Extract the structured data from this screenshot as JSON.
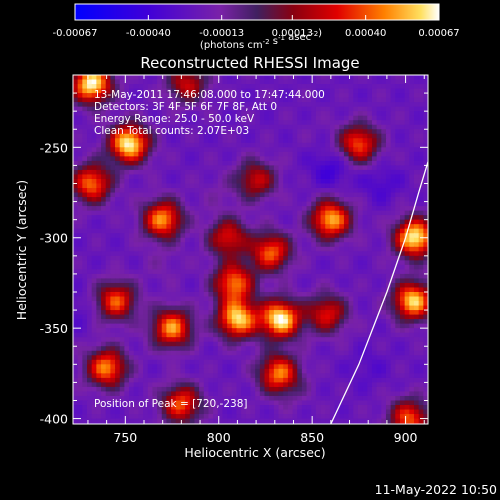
{
  "chart_data": {
    "type": "heatmap",
    "title": "Reconstructed RHESSI Image",
    "xlabel": "Heliocentric X (arcsec)",
    "ylabel": "Heliocentric Y (arcsec)",
    "xlim": [
      722,
      912
    ],
    "ylim": [
      -403,
      -210
    ],
    "x_ticks": [
      750,
      800,
      850,
      900
    ],
    "y_ticks": [
      -250,
      -300,
      -350,
      -400
    ],
    "colorbar": {
      "tick_labels": [
        "-0.00067",
        "-0.00040",
        "-0.00013",
        "0.00013",
        "0.00040",
        "0.00067"
      ],
      "tick_values": [
        -0.00067,
        -0.0004,
        -0.00013,
        0.00013,
        0.0004,
        0.00067
      ],
      "range": [
        -0.00067,
        0.00067
      ],
      "unit_label": "(photons cm^-2 s^-1 asec^-2)"
    },
    "annotations": [
      "13-May-2011 17:46:08.000 to 17:47:44.000",
      "Detectors: 3F 4F 5F 6F 7F 8F, Att 0",
      "Energy Range: 25.0 - 50.0 keV",
      "Clean    Total counts: 2.07E+03"
    ],
    "peak_label": "Position of Peak = [720,-238]",
    "peak_position": [
      720,
      -238
    ],
    "limb_curve": [
      [
        860,
        -403
      ],
      [
        875,
        -370
      ],
      [
        890,
        -330
      ],
      [
        900,
        -300
      ],
      [
        907,
        -275
      ],
      [
        912,
        -258
      ]
    ],
    "hotspots": [
      [
        732,
        -215,
        0.00067
      ],
      [
        752,
        -248,
        0.00067
      ],
      [
        732,
        -270,
        0.00045
      ],
      [
        770,
        -290,
        0.0005
      ],
      [
        745,
        -335,
        0.0004
      ],
      [
        740,
        -372,
        0.00048
      ],
      [
        775,
        -350,
        0.0005
      ],
      [
        808,
        -325,
        0.00045
      ],
      [
        810,
        -345,
        0.0006
      ],
      [
        805,
        -300,
        0.0003
      ],
      [
        828,
        -308,
        0.00042
      ],
      [
        833,
        -345,
        0.00067
      ],
      [
        832,
        -375,
        0.00045
      ],
      [
        860,
        -290,
        0.00055
      ],
      [
        875,
        -248,
        0.0004
      ],
      [
        905,
        -300,
        0.00067
      ],
      [
        904,
        -335,
        0.0006
      ],
      [
        902,
        -400,
        0.0004
      ],
      [
        858,
        -342,
        0.0003
      ],
      [
        780,
        -392,
        0.0004
      ],
      [
        820,
        -268,
        0.00025
      ],
      [
        783,
        -215,
        0.00025
      ]
    ],
    "coldspots": [
      [
        860,
        -262,
        -0.0004
      ],
      [
        887,
        -270,
        -0.00035
      ],
      [
        725,
        -340,
        -0.0003
      ],
      [
        880,
        -372,
        -0.0003
      ],
      [
        840,
        -385,
        -0.00015
      ],
      [
        800,
        -275,
        -0.00015
      ],
      [
        850,
        -240,
        -0.0002
      ],
      [
        770,
        -315,
        -0.00015
      ]
    ]
  },
  "footer": {
    "datetime": "11-May-2022 10:50"
  }
}
